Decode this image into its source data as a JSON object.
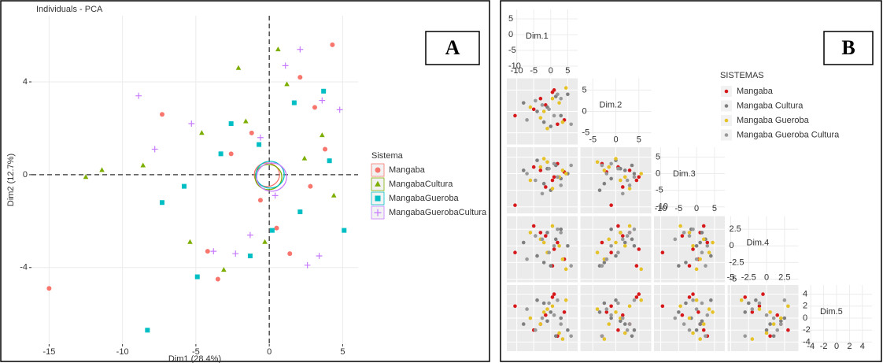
{
  "chart_data": [
    {
      "type": "scatter",
      "title": "Individuals - PCA",
      "panel_label": "A",
      "x_label": "Dim1 (28.4%)",
      "y_label": "Dim2 (12.7%)",
      "legend_title": "Sistema",
      "xlim": [
        -16.2,
        6.05
      ],
      "ylim": [
        -7.3,
        6.85
      ],
      "xticks": [
        -15,
        -10,
        -5,
        0,
        5
      ],
      "yticks": [
        -4,
        0,
        4
      ],
      "grid": true,
      "series": [
        {
          "name": "Mangaba",
          "color": "#F8766D",
          "marker": "circle",
          "x": [
            -15,
            -7.3,
            -3.5,
            -1.2,
            0.5,
            2.1,
            3.8,
            1.4,
            -2.6,
            4.3,
            -0.6,
            2.8,
            -4.2,
            3.1
          ],
          "values": [
            -4.9,
            2.6,
            -4.5,
            1.8,
            -2.3,
            4.2,
            1.1,
            -3.4,
            0.9,
            5.6,
            -1.1,
            -0.5,
            -3.3,
            2.9
          ]
        },
        {
          "name": "MangabaCultura",
          "color": "#7CAE00",
          "marker": "triangle",
          "x": [
            -12.5,
            -11.4,
            -8.6,
            -4.6,
            -2.1,
            0.6,
            1.2,
            -0.3,
            2.4,
            -3.1,
            -5.4,
            3.6,
            -1.6,
            4.4
          ],
          "values": [
            -0.1,
            0.2,
            0.4,
            1.8,
            4.6,
            5.4,
            3.9,
            -2.9,
            0.7,
            -4.1,
            -2.9,
            1.7,
            2.3,
            -0.9
          ]
        },
        {
          "name": "MangabaGueroba",
          "color": "#00BFC4",
          "marker": "square",
          "x": [
            -8.3,
            -4.9,
            -7.3,
            -2.6,
            -0.7,
            1.7,
            2.1,
            3.7,
            5.1,
            -3.3,
            0.2,
            -5.8,
            -1.3,
            4.1
          ],
          "values": [
            -6.7,
            -4.4,
            -1.2,
            2.2,
            1.3,
            3.1,
            -1.6,
            3.6,
            -2.4,
            0.9,
            -2.4,
            -0.5,
            -3.5,
            0.6
          ]
        },
        {
          "name": "MangabaGuerobaCultura",
          "color": "#C77CFF",
          "marker": "plus",
          "x": [
            -8.9,
            -7.8,
            -5.3,
            -3.8,
            -2.3,
            -0.6,
            1.1,
            2.6,
            3.6,
            4.8,
            0.4,
            -1.3,
            2.1,
            3.4
          ],
          "values": [
            3.4,
            1.1,
            2.2,
            -3.3,
            -3.4,
            1.6,
            4.7,
            -3.9,
            3.2,
            2.8,
            -0.9,
            -2.6,
            5.4,
            -3.5
          ]
        }
      ]
    },
    {
      "type": "scatter_matrix",
      "panel_label": "B",
      "legend_title": "SISTEMAS",
      "dims": [
        {
          "name": "Dim.1",
          "lim": [
            -12,
            7
          ],
          "ticks": [
            -10,
            -5,
            0,
            5
          ]
        },
        {
          "name": "Dim.2",
          "lim": [
            -7,
            7
          ],
          "ticks": [
            -5,
            0,
            5
          ]
        },
        {
          "name": "Dim.3",
          "lim": [
            -11,
            7
          ],
          "ticks": [
            -10,
            -5,
            0,
            5
          ]
        },
        {
          "name": "Dim.4",
          "lim": [
            -5,
            4
          ],
          "ticks": [
            -5,
            -2.5,
            0,
            2.5
          ]
        },
        {
          "name": "Dim.5",
          "lim": [
            -5,
            5
          ],
          "ticks": [
            -4,
            -2,
            0,
            2,
            4
          ]
        }
      ],
      "series": [
        {
          "name": "Mangaba",
          "color": "#d7191c",
          "values": [
            [
              -10.5,
              -3,
              0.5,
              2,
              -1.5,
              4,
              -5,
              1
            ],
            [
              -1,
              3,
              4.5,
              -3,
              1.5,
              -2,
              0.5,
              5
            ],
            [
              -9.5,
              1,
              -2,
              3,
              -4,
              0.5,
              2,
              -1
            ],
            [
              -1,
              2,
              -3,
              0.5,
              1.5,
              -2,
              3,
              -0.5
            ],
            [
              2,
              -1,
              3.5,
              -3,
              0.5,
              1,
              -2,
              4
            ]
          ]
        },
        {
          "name": "Mangaba Cultura",
          "color": "#7f7f7f",
          "values": [
            [
              -8,
              -2,
              1.5,
              3,
              -4,
              5,
              0,
              -1
            ],
            [
              2,
              -2.5,
              3.5,
              -1,
              0,
              4,
              -3.5,
              1
            ],
            [
              1,
              -3,
              2.5,
              -1.5,
              4,
              0,
              -5,
              1.5
            ],
            [
              0.5,
              -2.5,
              1,
              2.5,
              -1.5,
              0,
              -3,
              2
            ],
            [
              -1,
              2.5,
              -3,
              0,
              3,
              -2,
              1,
              -0.5
            ]
          ]
        },
        {
          "name": "Mangaba Gueroba",
          "color": "#e6c229",
          "values": [
            [
              -6,
              -1,
              2.5,
              4.5,
              -3,
              0.5,
              3.5,
              -2
            ],
            [
              1,
              -4,
              2,
              5.5,
              -1.5,
              3,
              -2.5,
              0
            ],
            [
              -2,
              3.5,
              -1,
              0,
              2,
              -4.5,
              1,
              4.5
            ],
            [
              2,
              -1,
              0,
              -3.5,
              1,
              3,
              -2,
              0.5
            ],
            [
              0,
              1.5,
              -2.5,
              3,
              -1,
              2,
              -3.5,
              1
            ]
          ]
        },
        {
          "name": "Mangaba Gueroba Cultura",
          "color": "#999999",
          "values": [
            [
              -7,
              -4.5,
              1,
              3,
              -0.5,
              6,
              2,
              -2.5
            ],
            [
              -2,
              2.5,
              -1,
              3,
              0.5,
              -3,
              4,
              1.5
            ],
            [
              0,
              -2,
              3,
              -3.5,
              1.5,
              2.5,
              -1,
              -6
            ],
            [
              -2,
              1.5,
              0,
              2,
              -1,
              -3,
              2.5,
              1
            ],
            [
              1.5,
              -2,
              0.5,
              -1,
              2.5,
              -3,
              3,
              0
            ]
          ]
        }
      ]
    }
  ]
}
